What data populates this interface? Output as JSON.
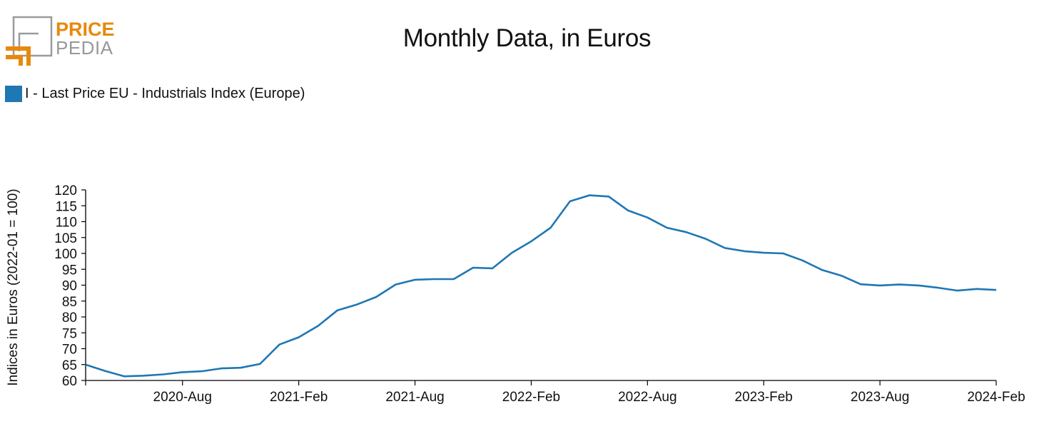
{
  "logo": {
    "line1": "PRICE",
    "line2": "PEDIA"
  },
  "colors": {
    "series": "#1f77b4",
    "logo_orange": "#e8890c",
    "logo_gray": "#999999"
  },
  "chart_data": {
    "type": "line",
    "title": "Monthly Data, in Euros",
    "ylabel": "Indices in Euros (2022-01 = 100)",
    "xlabel": "",
    "ylim": [
      60,
      120
    ],
    "yticks": [
      60,
      65,
      70,
      75,
      80,
      85,
      90,
      95,
      100,
      105,
      110,
      115,
      120
    ],
    "x_range": [
      "2020-03",
      "2024-02"
    ],
    "xticks": [
      "2020-Aug",
      "2021-Feb",
      "2021-Aug",
      "2022-Feb",
      "2022-Aug",
      "2023-Feb",
      "2023-Aug",
      "2024-Feb"
    ],
    "legend_position": "top-left",
    "grid": false,
    "x": [
      "2020-03",
      "2020-04",
      "2020-05",
      "2020-06",
      "2020-07",
      "2020-08",
      "2020-09",
      "2020-10",
      "2020-11",
      "2020-12",
      "2021-01",
      "2021-02",
      "2021-03",
      "2021-04",
      "2021-05",
      "2021-06",
      "2021-07",
      "2021-08",
      "2021-09",
      "2021-10",
      "2021-11",
      "2021-12",
      "2022-01",
      "2022-02",
      "2022-03",
      "2022-04",
      "2022-05",
      "2022-06",
      "2022-07",
      "2022-08",
      "2022-09",
      "2022-10",
      "2022-11",
      "2022-12",
      "2023-01",
      "2023-02",
      "2023-03",
      "2023-04",
      "2023-05",
      "2023-06",
      "2023-07",
      "2023-08",
      "2023-09",
      "2023-10",
      "2023-11",
      "2023-12",
      "2024-01",
      "2024-02"
    ],
    "series": [
      {
        "name": "I - Last Price EU - Industrials Index (Europe)",
        "values": [
          65,
          63,
          61.3,
          61.5,
          61.9,
          62.6,
          62.9,
          63.8,
          64.0,
          65.2,
          71.3,
          73.6,
          77.2,
          82.1,
          83.9,
          86.3,
          90.2,
          91.7,
          91.9,
          91.9,
          95.5,
          95.3,
          100.2,
          103.8,
          108.1,
          116.4,
          118.3,
          117.9,
          113.5,
          111.3,
          108.1,
          106.7,
          104.6,
          101.7,
          100.7,
          100.2,
          100.0,
          97.8,
          94.8,
          93.0,
          90.3,
          89.9,
          90.2,
          89.9,
          89.2,
          88.3,
          88.8,
          88.5
        ]
      }
    ]
  }
}
